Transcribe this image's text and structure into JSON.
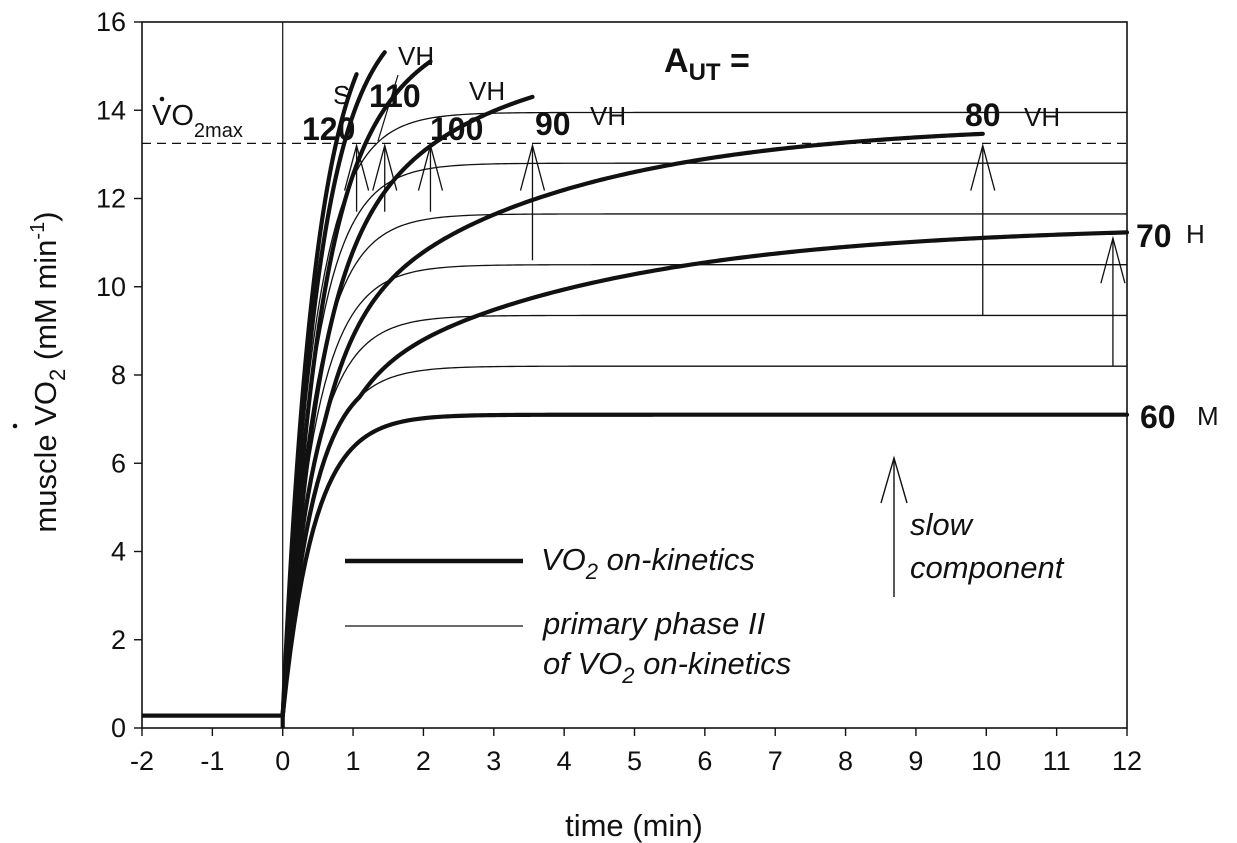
{
  "chart_data": {
    "type": "line",
    "xlabel": "time (min)",
    "ylabel": "muscle VO2 (mM min-1)",
    "ylabel_parts": {
      "pre": "muscle V",
      "dot": "·",
      "o": "O",
      "sub": "2",
      "mid": " (mM min",
      "sup": "-1",
      "post": ")"
    },
    "aut_title": {
      "main": "A",
      "sub": "UT",
      "eq": " ="
    },
    "xlim": [
      -2,
      12
    ],
    "ylim": [
      0,
      16
    ],
    "xticks": [
      "-2",
      "-1",
      "0",
      "1",
      "2",
      "3",
      "4",
      "5",
      "6",
      "7",
      "8",
      "9",
      "10",
      "11",
      "12"
    ],
    "yticks": [
      "0",
      "2",
      "4",
      "6",
      "8",
      "10",
      "12",
      "14",
      "16"
    ],
    "grid": false,
    "baseline_vo2": 0.28,
    "vo2max": {
      "value": 13.25,
      "label_main": "VO",
      "label_sub": "2max"
    },
    "series": [
      {
        "intensity": "60",
        "zone": "M",
        "primary_amp": 7.1,
        "primary_tau": 0.45,
        "slow_amp": 0,
        "slow_tau": 1,
        "slow_delay": 0,
        "end_time": 12,
        "final_vo2": 7.1
      },
      {
        "intensity": "70",
        "zone": "H",
        "primary_amp": 8.2,
        "primary_tau": 0.45,
        "slow_amp": 3.2,
        "slow_tau": 3.7,
        "slow_delay": 1.1,
        "end_time": 12,
        "final_vo2": 11.12
      },
      {
        "intensity": "80",
        "zone": "VH",
        "primary_amp": 9.35,
        "primary_tau": 0.45,
        "slow_amp": 4.35,
        "slow_tau": 3.2,
        "slow_delay": 0.6,
        "end_time": 9.95,
        "final_vo2": 13.25
      },
      {
        "intensity": "90",
        "zone": "VH",
        "primary_amp": 10.5,
        "primary_tau": 0.45,
        "slow_amp": 4.9,
        "slow_tau": 2.2,
        "slow_delay": 0.25,
        "end_time": 3.55,
        "final_vo2": 13.25
      },
      {
        "intensity": "100",
        "zone": "VH",
        "primary_amp": 11.65,
        "primary_tau": 0.45,
        "slow_amp": 4.9,
        "slow_tau": 1.5,
        "slow_delay": 0.15,
        "end_time": 2.1,
        "final_vo2": 13.25
      },
      {
        "intensity": "110",
        "zone": "VH",
        "primary_amp": 12.8,
        "primary_tau": 0.45,
        "slow_amp": 4.0,
        "slow_tau": 1.0,
        "slow_delay": 0.05,
        "end_time": 1.45,
        "final_vo2": 13.25
      },
      {
        "intensity": "120",
        "zone": "S",
        "primary_amp": 13.95,
        "primary_tau": 0.45,
        "slow_amp": 3.0,
        "slow_tau": 0.8,
        "slow_delay": 0.0,
        "end_time": 1.05,
        "final_vo2": 13.25
      }
    ],
    "slow_arrows": [
      {
        "x": 1.05,
        "y_from": 11.7,
        "y_to": 13.2
      },
      {
        "x": 1.45,
        "y_from": 11.7,
        "y_to": 13.2
      },
      {
        "x": 2.1,
        "y_from": 11.7,
        "y_to": 13.2
      },
      {
        "x": 3.55,
        "y_from": 10.6,
        "y_to": 13.2
      },
      {
        "x": 9.95,
        "y_from": 9.35,
        "y_to": 13.2
      },
      {
        "x": 11.8,
        "y_from": 8.2,
        "y_to": 11.1
      }
    ],
    "legend": {
      "thick_label": {
        "main": "VO",
        "sub": "2",
        "rest": " on-kinetics"
      },
      "thin_label_line1": "primary phase II",
      "thin_label_line2": {
        "pre": "of VO",
        "sub": "2",
        "rest": " on-kinetics"
      },
      "slow_label_line1": "slow",
      "slow_label_line2": "component"
    }
  }
}
